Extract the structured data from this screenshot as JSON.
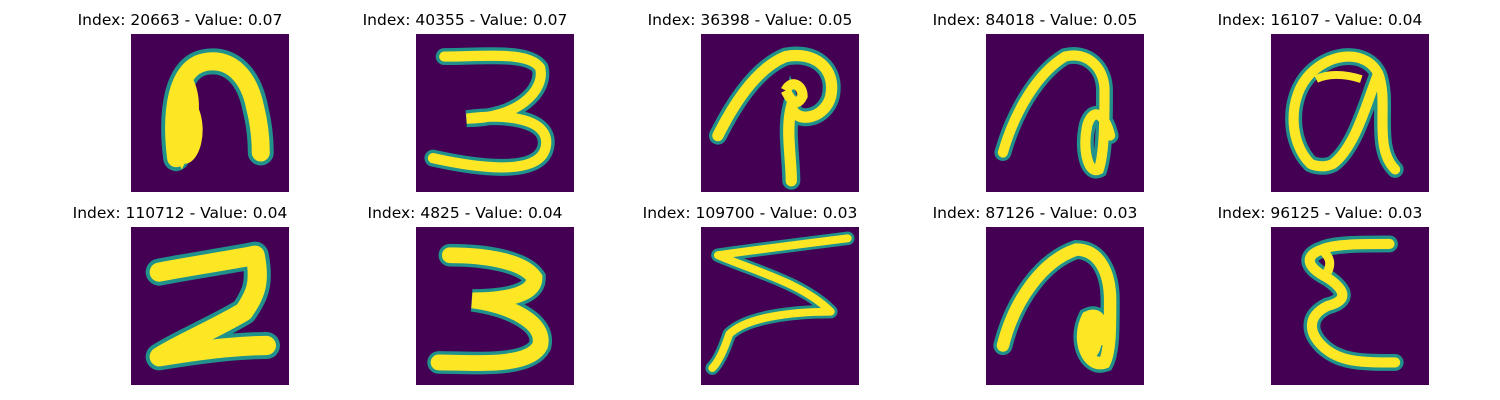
{
  "panels": [
    {
      "title": "Index: 20663 - Value: 0.07",
      "glyph": "glyph-n-blob"
    },
    {
      "title": "Index: 40355 - Value: 0.07",
      "glyph": "glyph-three"
    },
    {
      "title": "Index: 36398 - Value: 0.05",
      "glyph": "glyph-p-loop"
    },
    {
      "title": "Index: 84018 - Value: 0.05",
      "glyph": "glyph-a-loop"
    },
    {
      "title": "Index: 16107 - Value: 0.04",
      "glyph": "glyph-alpha-a"
    },
    {
      "title": "Index: 110712 - Value: 0.04",
      "glyph": "glyph-z-thick"
    },
    {
      "title": "Index: 4825 - Value: 0.04",
      "glyph": "glyph-three-thick"
    },
    {
      "title": "Index: 109700 - Value: 0.03",
      "glyph": "glyph-z-zigzag"
    },
    {
      "title": "Index: 87126 - Value: 0.03",
      "glyph": "glyph-a-curl"
    },
    {
      "title": "Index: 96125 - Value: 0.03",
      "glyph": "glyph-epsilon"
    }
  ],
  "colors": {
    "background": "#440154",
    "stroke": "#fde725",
    "edge": "#21918c"
  }
}
